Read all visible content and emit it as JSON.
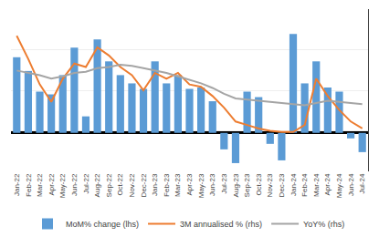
{
  "chart_data": {
    "type": "bar",
    "categories": [
      "Jan-22",
      "Feb-22",
      "Mar-22",
      "Apr-22",
      "May-22",
      "Jun-22",
      "Jul-22",
      "Aug-22",
      "Sep-22",
      "Oct-22",
      "Nov-22",
      "Dec-22",
      "Jan-23",
      "Feb-23",
      "Mar-23",
      "Apr-23",
      "May-23",
      "Jun-23",
      "Jul-23",
      "Aug-23",
      "Sep-23",
      "Oct-23",
      "Nov-23",
      "Dec-23",
      "Jan-24",
      "Feb-24",
      "Mar-24",
      "Apr-24",
      "May-24",
      "Jun-24",
      "Jul-24"
    ],
    "series": [
      {
        "name": "MoM% change (lhs)",
        "type": "bar",
        "color": "#5B9BD5",
        "values": [
          0.55,
          0.45,
          0.3,
          0.28,
          0.42,
          0.62,
          0.12,
          0.68,
          0.52,
          0.42,
          0.36,
          0.32,
          0.52,
          0.36,
          0.42,
          0.32,
          0.33,
          0.23,
          -0.12,
          -0.22,
          0.3,
          0.26,
          -0.08,
          -0.2,
          0.72,
          0.36,
          0.52,
          0.33,
          0.3,
          -0.04,
          -0.14
        ]
      },
      {
        "name": "3M annualised % (rhs)",
        "type": "line",
        "axis": "y2",
        "color": "#ED7D31",
        "values": [
          9.2,
          7.2,
          5.0,
          3.5,
          5.5,
          6.8,
          6.5,
          8.2,
          7.5,
          6.5,
          5.8,
          4.5,
          6.0,
          5.5,
          6.0,
          5.0,
          4.8,
          4.0,
          3.0,
          1.8,
          1.5,
          1.2,
          1.0,
          0.9,
          0.9,
          1.5,
          5.5,
          4.0,
          2.8,
          1.8,
          1.2
        ]
      },
      {
        "name": "YoY% (rhs)",
        "type": "line",
        "axis": "y2",
        "color": "#A5A5A5",
        "values": [
          6.2,
          6.0,
          5.8,
          5.5,
          5.7,
          6.0,
          6.1,
          6.4,
          6.5,
          6.7,
          6.6,
          6.4,
          6.2,
          6.0,
          5.7,
          5.4,
          5.1,
          4.7,
          4.2,
          3.8,
          3.7,
          3.6,
          3.5,
          3.4,
          3.3,
          3.2,
          3.4,
          3.6,
          3.5,
          3.4,
          3.3
        ]
      }
    ],
    "ylim": [
      -0.28,
      0.9
    ],
    "yticks": [
      -0.28,
      0.015,
      0.31,
      0.605,
      0.9
    ],
    "y2lim": [
      -2.5,
      11.5
    ],
    "grid": true,
    "legend": "bottom",
    "tick_labels": "x"
  }
}
